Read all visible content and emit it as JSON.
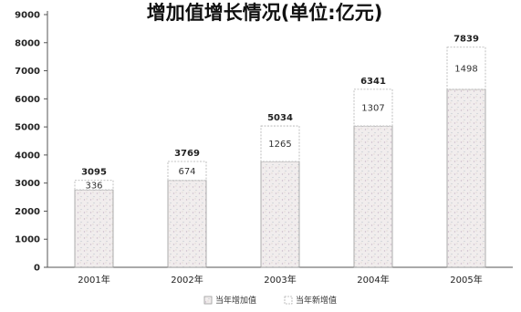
{
  "chart_data": {
    "type": "bar",
    "stacked": true,
    "title": "增加值增长情况(单位:亿元)",
    "categories": [
      "2001年",
      "2002年",
      "2003年",
      "2004年",
      "2005年"
    ],
    "totals": [
      3095,
      3769,
      5034,
      6341,
      7839
    ],
    "series": [
      {
        "name": "当年增加值",
        "values": [
          2759,
          3095,
          3769,
          5034,
          6341
        ]
      },
      {
        "name": "当年新增值",
        "values": [
          336,
          674,
          1265,
          1307,
          1498
        ]
      }
    ],
    "increment_labels": [
      "336",
      "674",
      "1265",
      "1307",
      "1498"
    ],
    "total_labels": [
      "3095",
      "3769",
      "5034",
      "6341",
      "7839"
    ],
    "ylim": [
      0,
      9000
    ],
    "yticks": [
      0,
      1000,
      2000,
      3000,
      4000,
      5000,
      6000,
      7000,
      8000,
      9000
    ],
    "grid": false,
    "legend_position": "bottom",
    "colors": {
      "base_fill": "#f1eded",
      "base_stroke": "#9a9a9a",
      "inc_fill": "#ffffff",
      "inc_stroke": "#b0b0b0",
      "axis": "#555555"
    }
  }
}
